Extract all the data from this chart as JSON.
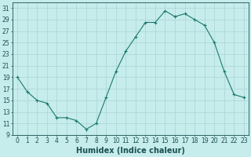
{
  "x": [
    0,
    1,
    2,
    3,
    4,
    5,
    6,
    7,
    8,
    9,
    10,
    11,
    12,
    13,
    14,
    15,
    16,
    17,
    18,
    19,
    20,
    21,
    22,
    23
  ],
  "y": [
    19,
    16.5,
    15,
    14.5,
    12,
    12,
    11.5,
    10,
    11,
    15.5,
    20,
    23.5,
    26,
    28.5,
    28.5,
    30.5,
    29.5,
    30,
    29,
    28,
    25,
    20,
    16,
    15.5
  ],
  "xlabel": "Humidex (Indice chaleur)",
  "line_color": "#1a7a6e",
  "marker": "+",
  "bg_color": "#c6ecec",
  "grid_color": "#aad4d4",
  "tick_label_color": "#1a5050",
  "ylim": [
    9,
    32
  ],
  "xlim": [
    -0.5,
    23.5
  ],
  "yticks": [
    9,
    11,
    13,
    15,
    17,
    19,
    21,
    23,
    25,
    27,
    29,
    31
  ],
  "xticks": [
    0,
    1,
    2,
    3,
    4,
    5,
    6,
    7,
    8,
    9,
    10,
    11,
    12,
    13,
    14,
    15,
    16,
    17,
    18,
    19,
    20,
    21,
    22,
    23
  ],
  "tick_fontsize": 5.5,
  "label_fontsize": 7
}
